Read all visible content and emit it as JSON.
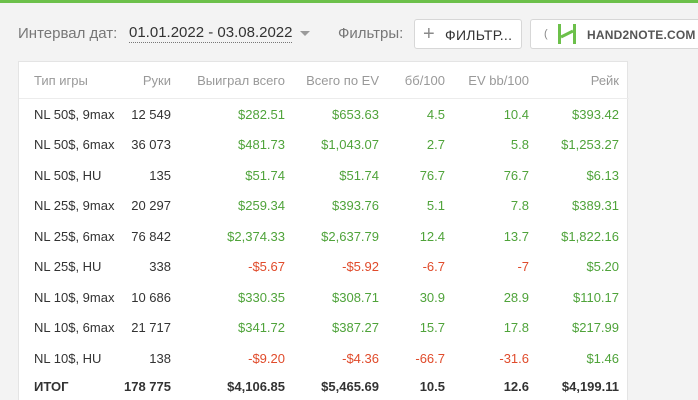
{
  "toolbar": {
    "interval_label": "Интервал дат:",
    "interval_value": "01.01.2022 - 03.08.2022",
    "filters_label": "Фильтры:",
    "filter_button_label": "ФИЛЬТР...",
    "logo_text": "HAND2NOTE.COM",
    "logo_edge_char": "("
  },
  "colors": {
    "accent": "#6cc04a",
    "positive": "#4fa33a",
    "negative": "#e04b2b"
  },
  "table": {
    "headers": [
      "Тип игры",
      "Руки",
      "Выиграл всего",
      "Всего по EV",
      "бб/100",
      "EV bb/100",
      "Рейк"
    ],
    "rows": [
      [
        "NL 50$, 9max",
        "12 549",
        "$282.51",
        "$653.63",
        "4.5",
        "10.4",
        "$393.42"
      ],
      [
        "NL 50$, 6max",
        "36 073",
        "$481.73",
        "$1,043.07",
        "2.7",
        "5.8",
        "$1,253.27"
      ],
      [
        "NL 50$, HU",
        "135",
        "$51.74",
        "$51.74",
        "76.7",
        "76.7",
        "$6.13"
      ],
      [
        "NL 25$, 9max",
        "20 297",
        "$259.34",
        "$393.76",
        "5.1",
        "7.8",
        "$389.31"
      ],
      [
        "NL 25$, 6max",
        "76 842",
        "$2,374.33",
        "$2,637.79",
        "12.4",
        "13.7",
        "$1,822.16"
      ],
      [
        "NL 25$, HU",
        "338",
        "-$5.67",
        "-$5.92",
        "-6.7",
        "-7",
        "$5.20"
      ],
      [
        "NL 10$, 9max",
        "10 686",
        "$330.35",
        "$308.71",
        "30.9",
        "28.9",
        "$110.17"
      ],
      [
        "NL 10$, 6max",
        "21 717",
        "$341.72",
        "$387.27",
        "15.7",
        "17.8",
        "$217.99"
      ],
      [
        "NL 10$, HU",
        "138",
        "-$9.20",
        "-$4.36",
        "-66.7",
        "-31.6",
        "$1.46"
      ]
    ],
    "total": [
      "ИТОГ",
      "178 775",
      "$4,106.85",
      "$5,465.69",
      "10.5",
      "12.6",
      "$4,199.11"
    ]
  }
}
